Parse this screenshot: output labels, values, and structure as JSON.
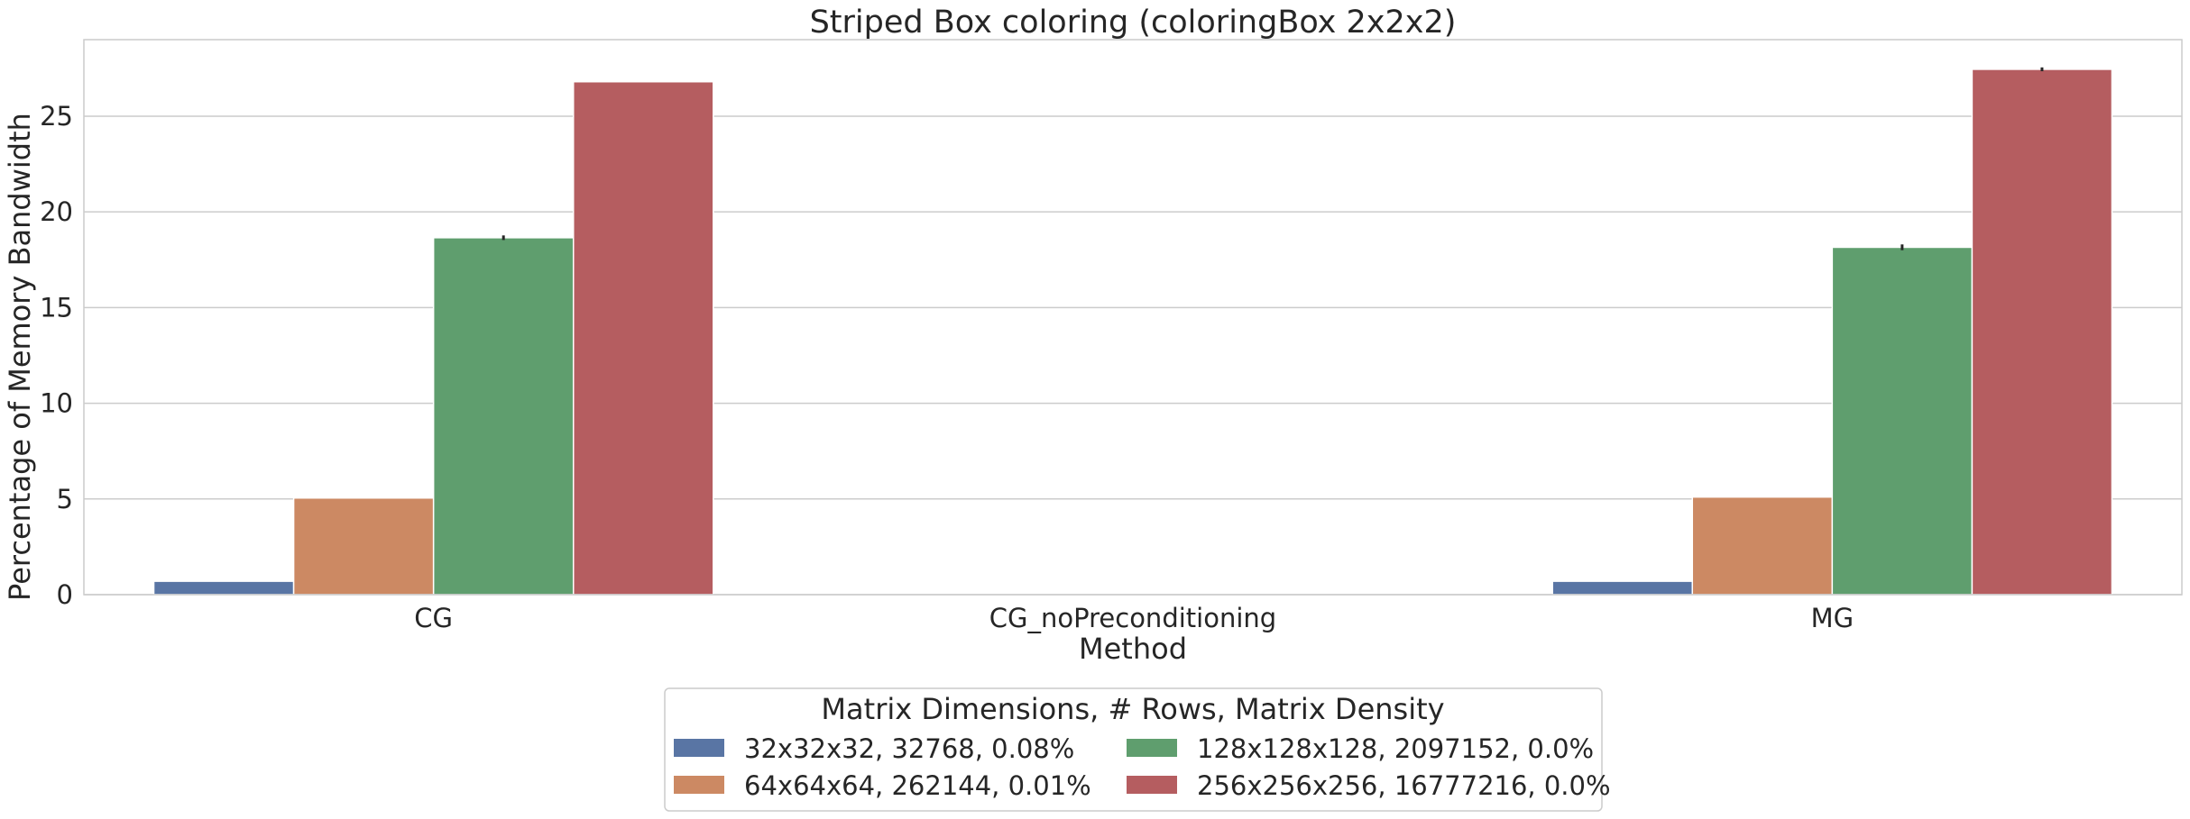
{
  "chart_data": {
    "type": "bar",
    "title": "Striped Box coloring (coloringBox 2x2x2)",
    "xlabel": "Method",
    "ylabel": "Percentage of Memory Bandwidth",
    "categories": [
      "CG",
      "CG_noPreconditioning",
      "MG"
    ],
    "ylim": [
      0,
      29
    ],
    "yticks": [
      0,
      5,
      10,
      15,
      20,
      25
    ],
    "grid": true,
    "legend_position": "bottom-center",
    "legend_title": "Matrix Dimensions, # Rows, Matrix Density",
    "series": [
      {
        "name": "32x32x32, 32768, 0.08%",
        "color": "#5975a4",
        "values": [
          0.7,
          null,
          0.7
        ],
        "errors": [
          0,
          null,
          0
        ]
      },
      {
        "name": "64x64x64, 262144, 0.01%",
        "color": "#cc8963",
        "values": [
          5.05,
          null,
          5.1
        ],
        "errors": [
          0,
          null,
          0
        ]
      },
      {
        "name": "128x128x128, 2097152, 0.0%",
        "color": "#5f9e6e",
        "values": [
          18.65,
          null,
          18.15
        ],
        "errors": [
          0.12,
          null,
          0.15
        ]
      },
      {
        "name": "256x256x256, 16777216, 0.0%",
        "color": "#b55d60",
        "values": [
          26.8,
          null,
          27.45
        ],
        "errors": [
          0,
          null,
          0.1
        ]
      }
    ]
  }
}
